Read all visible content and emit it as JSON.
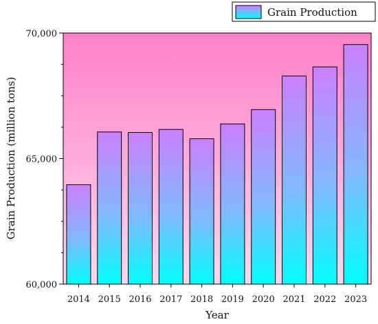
{
  "chart_data": {
    "type": "bar",
    "categories": [
      "2014",
      "2015",
      "2016",
      "2017",
      "2018",
      "2019",
      "2020",
      "2021",
      "2022",
      "2023"
    ],
    "series": [
      {
        "name": "Grain Production",
        "values": [
          63960,
          66060,
          66040,
          66160,
          65790,
          66380,
          66950,
          68290,
          68650,
          69540
        ]
      }
    ],
    "xlabel": "Year",
    "ylabel": "Grain Production (million tons)",
    "ylim": [
      60000,
      70000
    ],
    "yticks": [
      60000,
      65000,
      70000
    ],
    "ytick_labels": [
      "60,000",
      "65,000",
      "70,000"
    ],
    "legend_position": "top-right",
    "grid": false,
    "colors": {
      "plot_bg_top": "#ff80c8",
      "plot_bg_bottom": "#ffd8ee",
      "bar_top": "#cc80ff",
      "bar_bottom": "#00ffff",
      "bar_edge": "#000000"
    }
  }
}
